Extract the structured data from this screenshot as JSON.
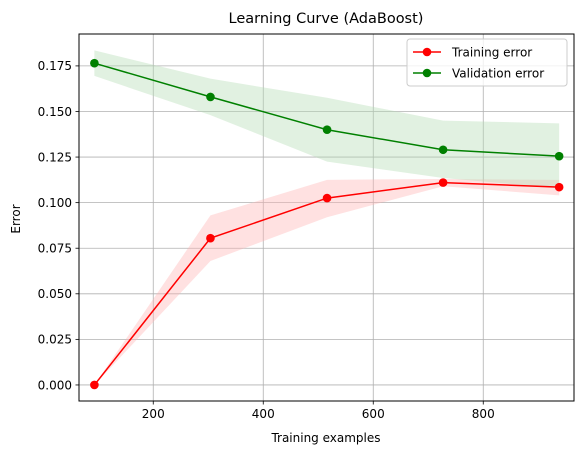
{
  "chart_data": {
    "type": "line",
    "title": "Learning Curve (AdaBoost)",
    "xlabel": "Training examples",
    "ylabel": "Error",
    "xlim": [
      65,
      965
    ],
    "ylim": [
      -0.0088,
      0.1925
    ],
    "xticks": [
      200,
      400,
      600,
      800
    ],
    "xtick_labels": [
      "200",
      "400",
      "600",
      "800"
    ],
    "yticks": [
      0.0,
      0.025,
      0.05,
      0.075,
      0.1,
      0.125,
      0.15,
      0.175
    ],
    "ytick_labels": [
      "0.000",
      "0.025",
      "0.050",
      "0.075",
      "0.100",
      "0.125",
      "0.150",
      "0.175"
    ],
    "grid": true,
    "legend_position": "top-right",
    "x": [
      93,
      304,
      516,
      727,
      938
    ],
    "series": [
      {
        "name": "Training error",
        "color": "#ff0000",
        "band_color": "#ffb3b3",
        "values": [
          0.0,
          0.0805,
          0.1025,
          0.111,
          0.1085
        ],
        "lower": [
          0.0,
          0.068,
          0.092,
          0.109,
          0.104
        ],
        "upper": [
          0.0,
          0.093,
          0.1125,
          0.113,
          0.1125
        ]
      },
      {
        "name": "Validation error",
        "color": "#008000",
        "band_color": "#b3dcb3",
        "values": [
          0.1765,
          0.158,
          0.14,
          0.129,
          0.1255
        ],
        "lower": [
          0.1695,
          0.148,
          0.1225,
          0.1135,
          0.108
        ],
        "upper": [
          0.1835,
          0.168,
          0.1575,
          0.145,
          0.1435
        ]
      }
    ]
  }
}
